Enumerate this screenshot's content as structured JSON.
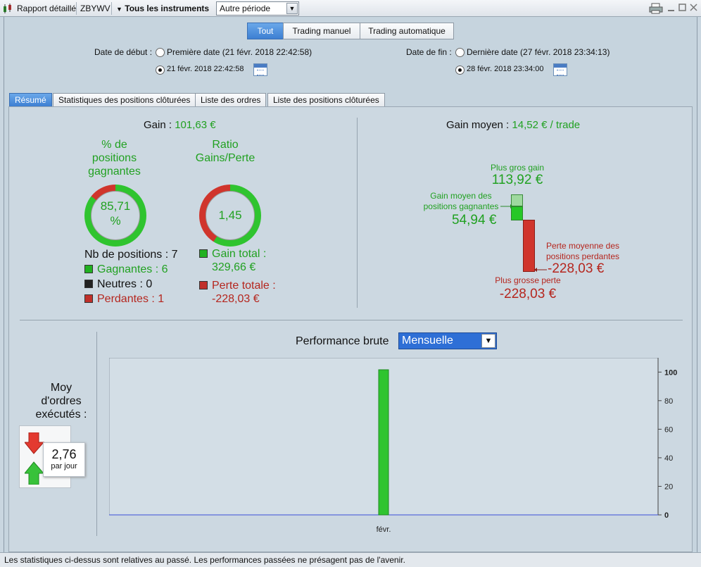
{
  "toolbar": {
    "report_label": "Rapport détaillé",
    "account": "ZBYWV",
    "instruments": "Tous les instruments",
    "period": "Autre période",
    "window_icons": [
      "printer-icon",
      "minimize-icon",
      "maximize-icon",
      "close-icon"
    ]
  },
  "filters": {
    "segments": [
      "Tout",
      "Trading manuel",
      "Trading automatique"
    ],
    "active_segment": "Tout",
    "start_label": "Date de début :",
    "start_option1": "Première date (21 févr. 2018 22:42:58)",
    "start_option2": "21 févr. 2018 22:42:58",
    "end_label": "Date de fin :",
    "end_option1": "Dernière date (27 févr. 2018 23:34:13)",
    "end_option2": "28 févr. 2018 23:34:00"
  },
  "tabs": [
    "Résumé",
    "Statistiques des positions clôturées",
    "Liste des ordres",
    "Liste des positions clôturées"
  ],
  "summary": {
    "gain_label": "Gain :",
    "gain_value": "101,63 €",
    "winpct_title_1": "% de",
    "winpct_title_2": "positions",
    "winpct_title_3": "gagnantes",
    "winpct_value_1": "85,71",
    "winpct_value_2": "%",
    "winpct_fraction": 0.8571,
    "ratio_title_1": "Ratio",
    "ratio_title_2": "Gains/Perte",
    "ratio_value": "1,45",
    "ratio_fraction": 0.59,
    "nb_positions": "Nb de positions : 7",
    "winners": "Gagnantes : 6",
    "neutral": "Neutres : 0",
    "losers": "Perdantes : 1",
    "gain_total_1": "Gain total :",
    "gain_total_2": "329,66 €",
    "loss_total_1": "Perte totale :",
    "loss_total_2": "-228,03 €",
    "avg_gain_label": "Gain moyen :",
    "avg_gain_value": "14,52 € / trade",
    "biggest_gain_label": "Plus gros gain",
    "biggest_gain_value": "113,92 €",
    "avg_win_label_1": "Gain moyen des",
    "avg_win_label_2": "positions gagnantes",
    "avg_win_value": "54,94 €",
    "avg_loss_label_1": "Perte moyenne des",
    "avg_loss_label_2": "positions perdantes",
    "avg_loss_value": "-228,03 €",
    "biggest_loss_label": "Plus grosse perte",
    "biggest_loss_value": "-228,03 €",
    "colors": {
      "green": "#21a121",
      "red": "#b5261e"
    }
  },
  "orders": {
    "title_1": "Moy",
    "title_2": "d'ordres",
    "title_3": "exécutés :",
    "value": "2,76",
    "unit": "par jour"
  },
  "performance": {
    "title": "Performance brute",
    "period": "Mensuelle"
  },
  "chart_data": {
    "type": "bar",
    "categories": [
      "févr."
    ],
    "values": [
      101.63
    ],
    "ylim": [
      0,
      110
    ],
    "yticks": [
      0,
      20,
      40,
      60,
      80,
      100
    ],
    "grid": false,
    "title": "",
    "xlabel": "",
    "ylabel": ""
  },
  "status": "Les statistiques ci-dessus sont relatives au passé. Les performances passées ne présagent pas de l'avenir."
}
